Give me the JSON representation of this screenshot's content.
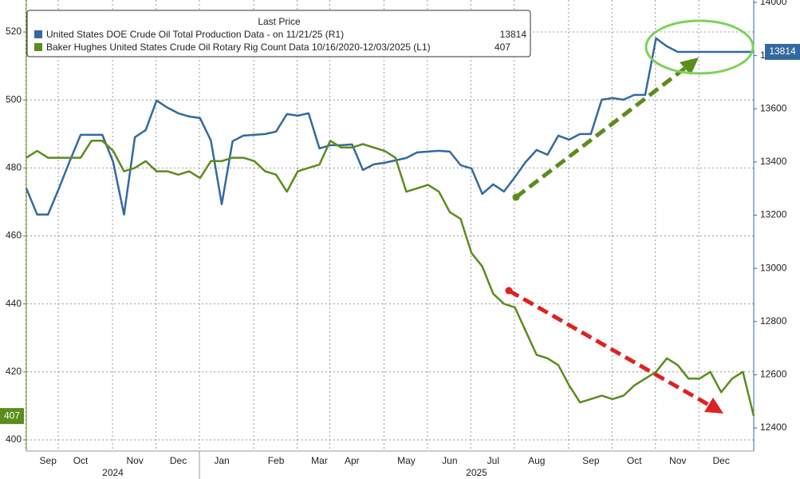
{
  "chart_data": {
    "type": "line",
    "legend_title": "Last Price",
    "categories": [
      null,
      null,
      "Sep",
      null,
      null,
      "Oct",
      null,
      null,
      null,
      null,
      "Nov",
      null,
      null,
      null,
      "Dec",
      null,
      null,
      null,
      "Jan",
      null,
      null,
      null,
      null,
      "Feb",
      null,
      null,
      null,
      "Mar",
      null,
      null,
      "Apr",
      null,
      null,
      null,
      null,
      "May",
      null,
      null,
      null,
      "Jun",
      null,
      null,
      null,
      "Jul",
      null,
      null,
      null,
      "Aug",
      null,
      null,
      null,
      null,
      "Sep",
      null,
      null,
      null,
      "Oct",
      null,
      null,
      null,
      "Nov",
      null,
      null,
      null,
      "Dec",
      null,
      null,
      null
    ],
    "year_labels": [
      "2024",
      "2025"
    ],
    "series": [
      {
        "name": "United States DOE Crude Oil Total Production Data -  on 11/21/25  (R1)",
        "color": "#3469a0",
        "axis": "y2",
        "values": [
          13301,
          13202,
          13202,
          13300,
          13403,
          13502,
          13502,
          13502,
          13400,
          13202,
          13493,
          13520,
          13631,
          13604,
          13583,
          13571,
          13565,
          13481,
          13241,
          13478,
          13499,
          13502,
          13505,
          13514,
          13580,
          13574,
          13583,
          13451,
          13463,
          13463,
          13466,
          13370,
          13391,
          13397,
          13406,
          13415,
          13436,
          13439,
          13442,
          13439,
          13388,
          13376,
          13280,
          13316,
          13289,
          13343,
          13400,
          13445,
          13427,
          13499,
          13484,
          13505,
          13505,
          13634,
          13640,
          13634,
          13652,
          13652,
          13865,
          13835,
          13814,
          13814,
          13814,
          13814,
          13814,
          13814,
          13814,
          13814
        ]
      },
      {
        "name": "Baker Hughes United States Crude Oil Rotary Rig Count Data 10/16/2020-12/03/2025  (L1)",
        "color": "#5b8c1c",
        "values": [
          483,
          485,
          483,
          483,
          483,
          483,
          488,
          488,
          485,
          479,
          480,
          482,
          479,
          479,
          478,
          479,
          477,
          482,
          482,
          483,
          483,
          482,
          479,
          478,
          473,
          479,
          480,
          481,
          488,
          486,
          486,
          487,
          486,
          485,
          483,
          473,
          474,
          475,
          473,
          467,
          465,
          455,
          451,
          443,
          440,
          439,
          432,
          425,
          424,
          422,
          416,
          411,
          412,
          413,
          412,
          413,
          416,
          418,
          420,
          424,
          422,
          418,
          418,
          420,
          414,
          418,
          420,
          407
        ]
      }
    ],
    "ylim": [
      396.7,
      529.4
    ],
    "yticks": [
      400,
      420,
      440,
      460,
      480,
      500,
      520
    ],
    "y2lim": [
      12313,
      14009
    ],
    "y2ticks": [
      12400,
      12600,
      12800,
      13000,
      13200,
      13400,
      13600,
      13800,
      14000
    ],
    "grid": true
  }
}
